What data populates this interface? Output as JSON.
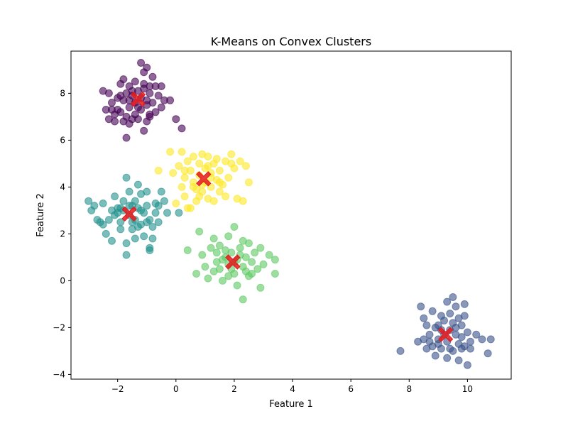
{
  "chart_data": {
    "type": "scatter",
    "title": "K-Means on Convex Clusters",
    "xlabel": "Feature 1",
    "ylabel": "Feature 2",
    "xlim": [
      -3.6,
      11.5
    ],
    "ylim": [
      -4.2,
      9.8
    ],
    "xticks": [
      -2,
      0,
      2,
      4,
      6,
      8,
      10
    ],
    "yticks": [
      -4,
      -2,
      0,
      2,
      4,
      6,
      8
    ],
    "grid": false,
    "legend": "none",
    "point_alpha": 0.6,
    "series": [
      {
        "color": "#440154",
        "points": [
          [
            -2.5,
            8.1
          ],
          [
            -2.3,
            8.0
          ],
          [
            -2.2,
            7.6
          ],
          [
            -2.0,
            7.8
          ],
          [
            -1.9,
            8.4
          ],
          [
            -1.8,
            8.6
          ],
          [
            -1.7,
            8.0
          ],
          [
            -1.6,
            8.3
          ],
          [
            -1.5,
            7.9
          ],
          [
            -1.4,
            8.5
          ],
          [
            -1.3,
            8.1
          ],
          [
            -1.2,
            9.3
          ],
          [
            -1.1,
            8.9
          ],
          [
            -1.0,
            9.1
          ],
          [
            -1.1,
            8.2
          ],
          [
            -0.9,
            8.0
          ],
          [
            -0.8,
            8.7
          ],
          [
            -0.7,
            8.3
          ],
          [
            -0.6,
            7.9
          ],
          [
            -0.5,
            8.3
          ],
          [
            -0.4,
            7.7
          ],
          [
            -0.5,
            7.4
          ],
          [
            -0.7,
            7.2
          ],
          [
            -0.9,
            7.0
          ],
          [
            -1.0,
            7.5
          ],
          [
            -1.2,
            7.3
          ],
          [
            -1.4,
            7.1
          ],
          [
            -1.6,
            7.4
          ],
          [
            -1.7,
            7.0
          ],
          [
            -1.9,
            7.2
          ],
          [
            -2.1,
            7.1
          ],
          [
            -2.2,
            7.3
          ],
          [
            -2.4,
            7.3
          ],
          [
            -2.3,
            6.9
          ],
          [
            -2.1,
            6.8
          ],
          [
            -1.8,
            6.8
          ],
          [
            -1.6,
            6.7
          ],
          [
            -1.5,
            6.9
          ],
          [
            -1.3,
            6.9
          ],
          [
            -1.0,
            6.8
          ],
          [
            -0.9,
            7.1
          ],
          [
            -1.1,
            6.4
          ],
          [
            -1.7,
            6.1
          ],
          [
            -0.2,
            7.7
          ],
          [
            0.0,
            6.9
          ],
          [
            0.2,
            6.5
          ],
          [
            -1.8,
            7.7
          ],
          [
            -1.6,
            7.7
          ],
          [
            -1.4,
            7.6
          ],
          [
            -1.2,
            7.8
          ],
          [
            -1.0,
            7.7
          ],
          [
            -0.8,
            7.6
          ],
          [
            -1.5,
            8.1
          ],
          [
            -1.1,
            8.4
          ],
          [
            -0.9,
            8.3
          ],
          [
            -1.9,
            7.9
          ],
          [
            -2.0,
            7.3
          ],
          [
            -1.3,
            7.4
          ]
        ]
      },
      {
        "color": "#3b528b",
        "points": [
          [
            7.7,
            -3.0
          ],
          [
            8.3,
            -2.6
          ],
          [
            8.4,
            -1.1
          ],
          [
            8.5,
            -1.6
          ],
          [
            8.6,
            -1.9
          ],
          [
            8.7,
            -2.3
          ],
          [
            8.8,
            -1.3
          ],
          [
            8.8,
            -2.8
          ],
          [
            8.9,
            -3.2
          ],
          [
            9.0,
            -1.9
          ],
          [
            9.0,
            -2.5
          ],
          [
            9.1,
            -2.9
          ],
          [
            9.1,
            -2.1
          ],
          [
            9.2,
            -1.7
          ],
          [
            9.3,
            -0.9
          ],
          [
            9.3,
            -2.6
          ],
          [
            9.3,
            -3.3
          ],
          [
            9.4,
            -1.4
          ],
          [
            9.4,
            -2.9
          ],
          [
            9.5,
            -0.7
          ],
          [
            9.5,
            -1.8
          ],
          [
            9.5,
            -3.0
          ],
          [
            9.6,
            -2.3
          ],
          [
            9.6,
            -1.1
          ],
          [
            9.7,
            -2.7
          ],
          [
            9.7,
            -3.4
          ],
          [
            9.8,
            -1.9
          ],
          [
            9.8,
            -2.4
          ],
          [
            9.9,
            -1.0
          ],
          [
            9.9,
            -1.5
          ],
          [
            9.9,
            -2.8
          ],
          [
            10.0,
            -3.6
          ],
          [
            10.0,
            -2.2
          ],
          [
            10.1,
            -2.6
          ],
          [
            10.1,
            -2.9
          ],
          [
            10.3,
            -2.3
          ],
          [
            10.5,
            -2.5
          ],
          [
            10.7,
            -3.1
          ],
          [
            10.8,
            -2.5
          ],
          [
            8.6,
            -2.9
          ],
          [
            8.9,
            -2.0
          ],
          [
            9.0,
            -2.7
          ],
          [
            9.2,
            -2.3
          ],
          [
            9.4,
            -2.1
          ],
          [
            9.6,
            -2.0
          ],
          [
            9.8,
            -2.9
          ],
          [
            8.7,
            -2.6
          ],
          [
            9.1,
            -1.5
          ],
          [
            9.7,
            -1.6
          ],
          [
            8.5,
            -2.5
          ]
        ]
      },
      {
        "color": "#21918c",
        "points": [
          [
            -3.0,
            3.4
          ],
          [
            -2.9,
            3.0
          ],
          [
            -2.8,
            3.2
          ],
          [
            -2.7,
            2.6
          ],
          [
            -2.5,
            2.4
          ],
          [
            -2.5,
            3.3
          ],
          [
            -2.4,
            2.0
          ],
          [
            -2.3,
            2.6
          ],
          [
            -2.2,
            1.7
          ],
          [
            -2.1,
            2.8
          ],
          [
            -2.1,
            3.6
          ],
          [
            -2.0,
            3.1
          ],
          [
            -1.9,
            2.5
          ],
          [
            -1.9,
            2.2
          ],
          [
            -1.8,
            3.4
          ],
          [
            -1.7,
            4.4
          ],
          [
            -1.7,
            1.6
          ],
          [
            -1.7,
            1.1
          ],
          [
            -1.6,
            2.8
          ],
          [
            -1.6,
            3.8
          ],
          [
            -1.5,
            2.2
          ],
          [
            -1.5,
            3.2
          ],
          [
            -1.4,
            1.8
          ],
          [
            -1.4,
            2.6
          ],
          [
            -1.3,
            3.1
          ],
          [
            -1.3,
            4.1
          ],
          [
            -1.2,
            3.7
          ],
          [
            -1.2,
            2.4
          ],
          [
            -1.1,
            1.9
          ],
          [
            -1.1,
            2.9
          ],
          [
            -1.0,
            3.8
          ],
          [
            -1.0,
            3.2
          ],
          [
            -0.9,
            2.6
          ],
          [
            -0.9,
            1.3
          ],
          [
            -0.8,
            2.3
          ],
          [
            -0.8,
            1.8
          ],
          [
            -0.7,
            2.9
          ],
          [
            -0.6,
            3.2
          ],
          [
            -0.5,
            3.8
          ],
          [
            -0.4,
            3.4
          ],
          [
            -0.3,
            2.9
          ],
          [
            0.1,
            2.9
          ],
          [
            -2.0,
            2.9
          ],
          [
            -1.8,
            3.0
          ],
          [
            -1.6,
            3.2
          ],
          [
            -1.4,
            3.4
          ],
          [
            -1.2,
            3.0
          ],
          [
            -1.0,
            2.5
          ],
          [
            -0.9,
            1.4
          ],
          [
            -2.2,
            3.0
          ],
          [
            -2.6,
            2.5
          ],
          [
            -1.5,
            2.5
          ],
          [
            -1.3,
            2.3
          ],
          [
            -0.7,
            3.3
          ],
          [
            -0.6,
            2.5
          ],
          [
            -1.9,
            3.1
          ]
        ]
      },
      {
        "color": "#5ec962",
        "points": [
          [
            0.4,
            1.3
          ],
          [
            0.7,
            0.3
          ],
          [
            0.8,
            2.1
          ],
          [
            0.9,
            1.1
          ],
          [
            1.0,
            0.6
          ],
          [
            1.1,
            0.1
          ],
          [
            1.2,
            1.4
          ],
          [
            1.3,
            1.8
          ],
          [
            1.4,
            0.8
          ],
          [
            1.5,
            0.5
          ],
          [
            1.5,
            1.5
          ],
          [
            1.6,
            0.0
          ],
          [
            1.7,
            1.0
          ],
          [
            1.8,
            1.9
          ],
          [
            1.8,
            0.7
          ],
          [
            1.9,
            1.2
          ],
          [
            2.0,
            2.3
          ],
          [
            2.0,
            0.3
          ],
          [
            2.1,
            0.9
          ],
          [
            2.1,
            -0.2
          ],
          [
            2.2,
            1.4
          ],
          [
            2.3,
            0.6
          ],
          [
            2.3,
            -0.8
          ],
          [
            2.4,
            1.0
          ],
          [
            2.5,
            1.6
          ],
          [
            2.5,
            0.2
          ],
          [
            2.6,
            0.8
          ],
          [
            2.7,
            1.2
          ],
          [
            2.8,
            0.5
          ],
          [
            2.9,
            -0.3
          ],
          [
            2.9,
            1.4
          ],
          [
            3.0,
            0.7
          ],
          [
            3.2,
            1.1
          ],
          [
            3.4,
            0.9
          ],
          [
            3.4,
            0.3
          ],
          [
            1.3,
            0.4
          ],
          [
            1.6,
            0.9
          ],
          [
            1.9,
            0.5
          ],
          [
            2.2,
            1.1
          ],
          [
            2.4,
            0.4
          ],
          [
            1.7,
            1.3
          ],
          [
            2.6,
            0.3
          ],
          [
            1.4,
            1.2
          ],
          [
            2.0,
            0.8
          ],
          [
            1.8,
            0.2
          ],
          [
            2.3,
            1.7
          ]
        ]
      },
      {
        "color": "#fde725",
        "points": [
          [
            -0.6,
            4.7
          ],
          [
            -0.2,
            5.5
          ],
          [
            -0.1,
            4.6
          ],
          [
            0.1,
            4.9
          ],
          [
            0.2,
            4.0
          ],
          [
            0.2,
            5.5
          ],
          [
            0.3,
            3.6
          ],
          [
            0.3,
            4.4
          ],
          [
            0.4,
            5.1
          ],
          [
            0.5,
            3.1
          ],
          [
            0.5,
            4.7
          ],
          [
            0.6,
            4.2
          ],
          [
            0.6,
            5.3
          ],
          [
            0.7,
            3.4
          ],
          [
            0.7,
            3.9
          ],
          [
            0.8,
            4.5
          ],
          [
            0.8,
            5.0
          ],
          [
            0.9,
            3.8
          ],
          [
            0.9,
            5.4
          ],
          [
            1.0,
            4.2
          ],
          [
            1.0,
            4.8
          ],
          [
            1.1,
            3.5
          ],
          [
            1.1,
            5.3
          ],
          [
            1.2,
            4.0
          ],
          [
            1.2,
            4.6
          ],
          [
            1.3,
            3.4
          ],
          [
            1.3,
            5.0
          ],
          [
            1.4,
            4.3
          ],
          [
            1.4,
            5.2
          ],
          [
            1.5,
            3.8
          ],
          [
            1.5,
            4.7
          ],
          [
            1.6,
            4.1
          ],
          [
            1.7,
            3.6
          ],
          [
            1.7,
            5.1
          ],
          [
            1.8,
            4.4
          ],
          [
            1.9,
            5.0
          ],
          [
            1.9,
            5.4
          ],
          [
            2.0,
            4.8
          ],
          [
            2.1,
            3.5
          ],
          [
            2.2,
            5.1
          ],
          [
            2.3,
            3.4
          ],
          [
            2.4,
            4.9
          ],
          [
            2.5,
            4.2
          ],
          [
            0.0,
            3.3
          ],
          [
            0.4,
            3.1
          ],
          [
            0.6,
            4.0
          ],
          [
            0.9,
            4.1
          ],
          [
            1.2,
            4.4
          ],
          [
            1.5,
            4.2
          ],
          [
            0.8,
            3.6
          ],
          [
            1.1,
            4.9
          ],
          [
            0.3,
            4.7
          ]
        ]
      }
    ],
    "centroids": {
      "color": "#e41a1c",
      "marker": "X",
      "alpha": 0.85,
      "points": [
        [
          -1.3,
          7.75
        ],
        [
          9.25,
          -2.3
        ],
        [
          -1.6,
          2.85
        ],
        [
          1.95,
          0.8
        ],
        [
          0.95,
          4.35
        ]
      ]
    }
  }
}
